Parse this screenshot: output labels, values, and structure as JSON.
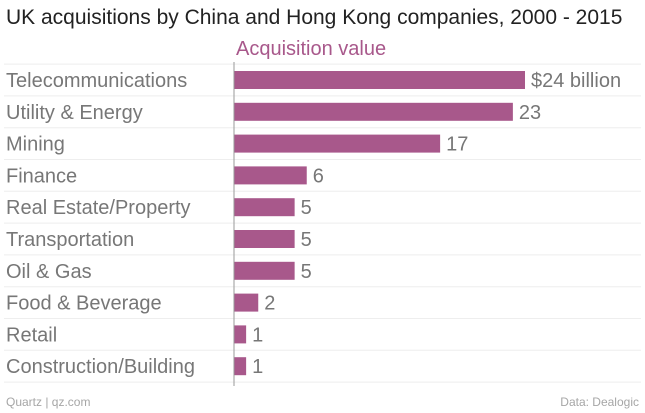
{
  "title": "UK acquisitions by China and Hong Kong companies, 2000 - 2015",
  "footer": {
    "left": "Quartz | qz.com",
    "right": "Data: Dealogic"
  },
  "colors": {
    "bar": "#a8588b",
    "subtitle": "#a8588b",
    "axis": "#999999",
    "grid": "#eeeeee"
  },
  "chart_data": {
    "type": "bar",
    "orientation": "horizontal",
    "subtitle": "Acquisition value",
    "categories": [
      "Telecommunications",
      "Utility & Energy",
      "Mining",
      "Finance",
      "Real Estate/Property",
      "Transportation",
      "Oil & Gas",
      "Food & Beverage",
      "Retail",
      "Construction/Building"
    ],
    "values": [
      24,
      23,
      17,
      6,
      5,
      5,
      5,
      2,
      1,
      1
    ],
    "value_labels": [
      "$24 billion",
      "23",
      "17",
      "6",
      "5",
      "5",
      "5",
      "2",
      "1",
      "1"
    ],
    "xlim": [
      0,
      24
    ],
    "grid": true
  }
}
